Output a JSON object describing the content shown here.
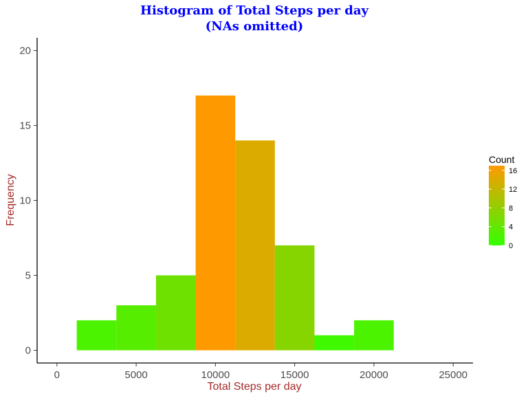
{
  "chart_data": {
    "type": "bar",
    "title_line1": "Histogram of Total Steps per day",
    "title_line2": "(NAs omitted)",
    "xlabel": "Total Steps per day",
    "ylabel": "Frequency",
    "xlim": [
      -1250,
      26250
    ],
    "ylim": [
      -0.85,
      20.85
    ],
    "x_ticks": [
      0,
      5000,
      10000,
      15000,
      20000,
      25000
    ],
    "x_tick_labels": [
      "0",
      "5000",
      "10000",
      "15000",
      "20000",
      "25000"
    ],
    "y_ticks": [
      0,
      5,
      10,
      15,
      20
    ],
    "y_tick_labels": [
      "0",
      "5",
      "10",
      "15",
      "20"
    ],
    "bin_width": 2500,
    "bins": [
      {
        "center": 2500,
        "count": 2
      },
      {
        "center": 5000,
        "count": 3
      },
      {
        "center": 7500,
        "count": 5
      },
      {
        "center": 10000,
        "count": 17
      },
      {
        "center": 12500,
        "count": 14
      },
      {
        "center": 15000,
        "count": 7
      },
      {
        "center": 17500,
        "count": 1
      },
      {
        "center": 20000,
        "count": 2
      }
    ],
    "fill_low_color": "#33ff00",
    "fill_high_color": "#ff9900",
    "legend": {
      "title": "Count",
      "placement": "right",
      "breaks": [
        0,
        4,
        8,
        12,
        16
      ],
      "break_labels": [
        "0",
        "4",
        "8",
        "12",
        "16"
      ],
      "range": [
        0,
        17
      ]
    },
    "grid": false
  }
}
